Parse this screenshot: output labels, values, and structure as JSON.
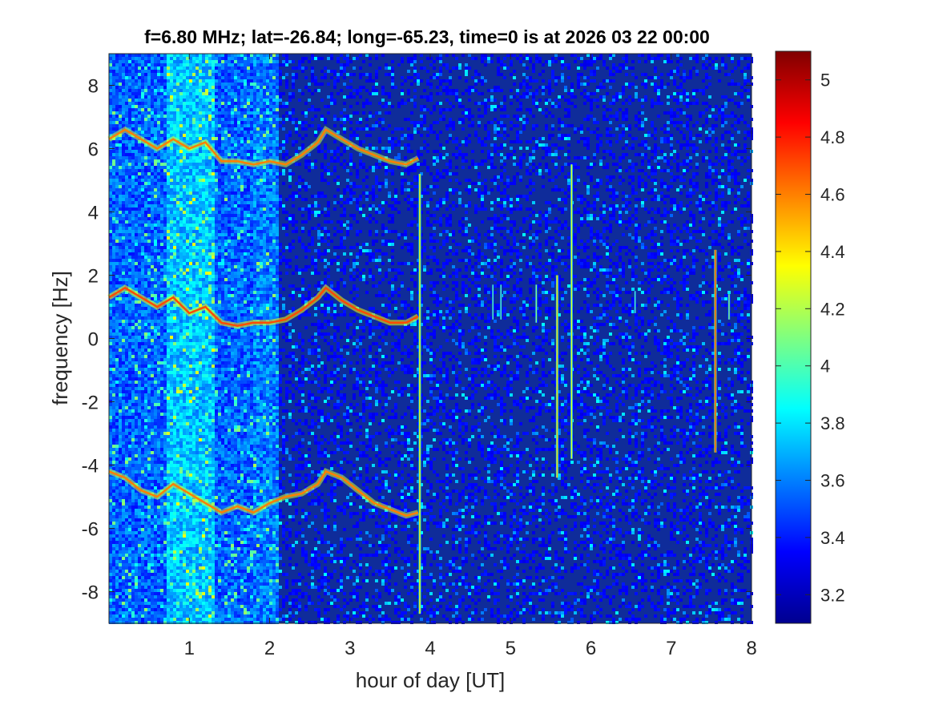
{
  "chart_data": {
    "type": "heatmap",
    "title": "f=6.80 MHz;  lat=-26.84; long=-65.23, time=0 is at 2026 03 22 00:00",
    "xlabel": "hour of day [UT]",
    "ylabel": "frequency [Hz]",
    "xlim": [
      0,
      8
    ],
    "ylim": [
      -9,
      9
    ],
    "x_ticks": [
      "1",
      "2",
      "3",
      "4",
      "5",
      "6",
      "7",
      "8"
    ],
    "y_ticks": [
      "8",
      "6",
      "4",
      "2",
      "0",
      "-2",
      "-4",
      "-6",
      "-8"
    ],
    "colormap": "jet",
    "clim": [
      3.1,
      5.1
    ],
    "colorbar_ticks": [
      "5",
      "4.8",
      "4.6",
      "4.4",
      "4.2",
      "4",
      "3.8",
      "3.6",
      "3.4",
      "3.2"
    ],
    "background_level": 3.25,
    "traces": [
      {
        "name": "upper",
        "x": [
          0.0,
          0.2,
          0.4,
          0.6,
          0.8,
          1.0,
          1.2,
          1.4,
          1.6,
          1.8,
          2.0,
          2.2,
          2.4,
          2.6,
          2.7,
          2.9,
          3.1,
          3.3,
          3.5,
          3.7,
          3.85
        ],
        "y": [
          6.3,
          6.6,
          6.3,
          6.0,
          6.3,
          6.0,
          6.2,
          5.6,
          5.6,
          5.5,
          5.6,
          5.5,
          5.8,
          6.2,
          6.6,
          6.3,
          6.0,
          5.8,
          5.6,
          5.5,
          5.7
        ],
        "level": 4.6
      },
      {
        "name": "middle",
        "x": [
          0.0,
          0.2,
          0.4,
          0.6,
          0.8,
          1.0,
          1.2,
          1.4,
          1.6,
          1.8,
          2.0,
          2.2,
          2.4,
          2.6,
          2.7,
          2.9,
          3.1,
          3.3,
          3.5,
          3.7,
          3.85
        ],
        "y": [
          1.3,
          1.6,
          1.3,
          1.0,
          1.3,
          0.8,
          1.0,
          0.5,
          0.4,
          0.5,
          0.5,
          0.6,
          0.9,
          1.3,
          1.6,
          1.2,
          0.9,
          0.7,
          0.5,
          0.5,
          0.7
        ],
        "level": 4.7
      },
      {
        "name": "lower",
        "x": [
          0.0,
          0.2,
          0.4,
          0.6,
          0.8,
          1.0,
          1.2,
          1.4,
          1.6,
          1.8,
          2.0,
          2.2,
          2.4,
          2.6,
          2.7,
          2.9,
          3.1,
          3.3,
          3.5,
          3.7,
          3.85
        ],
        "y": [
          -4.2,
          -4.4,
          -4.8,
          -5.0,
          -4.6,
          -4.9,
          -5.2,
          -5.5,
          -5.3,
          -5.5,
          -5.2,
          -5.0,
          -4.9,
          -4.6,
          -4.2,
          -4.4,
          -4.8,
          -5.2,
          -5.4,
          -5.6,
          -5.5
        ],
        "level": 4.6
      }
    ],
    "vertical_spikes": [
      {
        "x": 3.87,
        "y_range": [
          -8.7,
          5.2
        ],
        "level": 4.4
      },
      {
        "x": 5.58,
        "y_range": [
          -4.4,
          2.0
        ],
        "level": 4.5
      },
      {
        "x": 5.76,
        "y_range": [
          -3.8,
          5.5
        ],
        "level": 4.3
      },
      {
        "x": 7.55,
        "y_range": [
          -3.6,
          2.8
        ],
        "level": 4.7
      },
      {
        "x": 7.72,
        "y_range": [
          0.6,
          1.4
        ],
        "level": 4.1
      },
      {
        "x": 6.55,
        "y_range": [
          0.8,
          1.5
        ],
        "level": 4.0
      },
      {
        "x": 5.32,
        "y_range": [
          0.5,
          1.7
        ],
        "level": 4.1
      },
      {
        "x": 4.78,
        "y_range": [
          0.6,
          1.7
        ],
        "level": 4.0
      },
      {
        "x": 4.88,
        "y_range": [
          0.6,
          1.7
        ],
        "level": 4.0
      }
    ],
    "noise_bands": [
      {
        "x_range": [
          0.0,
          2.1
        ],
        "level": 3.55
      },
      {
        "x_range": [
          0.7,
          1.3
        ],
        "level": 3.75
      },
      {
        "x_range": [
          1.8,
          2.1
        ],
        "level": 3.6
      }
    ]
  }
}
